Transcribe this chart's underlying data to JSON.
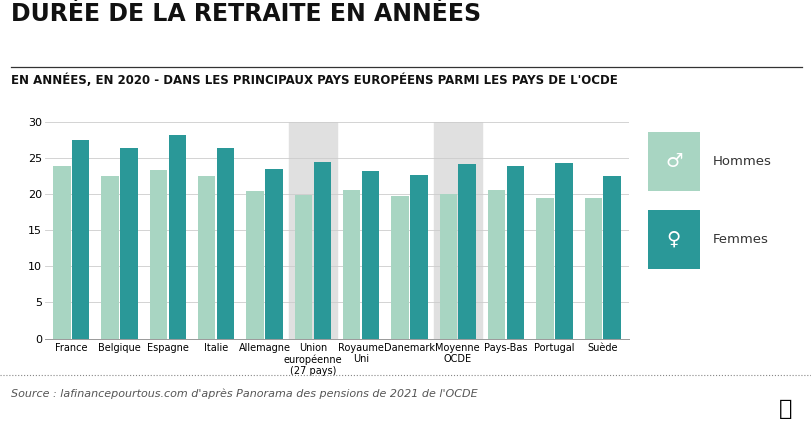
{
  "title": "DURÉE DE LA RETRAITE EN ANNÉES",
  "subtitle": "EN ANNÉES, EN 2020 - DANS LES PRINCIPAUX PAYS EUROPÉENS PARMI LES PAYS DE L'OCDE",
  "source": "Source : lafinancepourtous.com d'après Panorama des pensions de 2021 de l'OCDE",
  "categories": [
    "France",
    "Belgique",
    "Espagne",
    "Italie",
    "Allemagne",
    "Union\neuropéenne\n(27 pays)",
    "Royaume\nUni",
    "Danemark",
    "Moyenne\nOCDE",
    "Pays-Bas",
    "Portugal",
    "Suède"
  ],
  "hommes": [
    23.8,
    22.5,
    23.3,
    22.5,
    20.4,
    19.8,
    20.5,
    19.7,
    20.0,
    20.5,
    19.4,
    19.4
  ],
  "femmes": [
    27.4,
    26.4,
    28.1,
    26.4,
    23.4,
    24.4,
    23.1,
    22.6,
    24.1,
    23.8,
    24.3,
    22.4
  ],
  "color_hommes": "#a8d5c2",
  "color_femmes": "#2a9898",
  "color_highlight": "#e0e0e0",
  "highlight_indices": [
    5,
    8
  ],
  "background_color": "#ffffff",
  "title_color": "#111111",
  "subtitle_color": "#111111",
  "source_color": "#555555",
  "grid_color": "#cccccc",
  "ylim": [
    0,
    30
  ],
  "yticks": [
    0,
    5,
    10,
    15,
    20,
    25,
    30
  ],
  "title_fontsize": 17,
  "subtitle_fontsize": 8.5,
  "source_fontsize": 8,
  "tick_fontsize": 8,
  "legend_label_hommes": "Hommes",
  "legend_label_femmes": "Femmes",
  "legend_symbol_hommes": "♂",
  "legend_symbol_femmes": "♀"
}
